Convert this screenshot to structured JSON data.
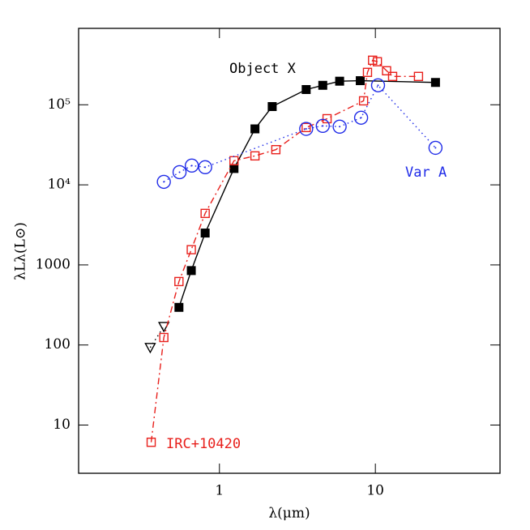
{
  "chart_data": {
    "type": "line",
    "xlog": true,
    "ylog": true,
    "xlabel": "λ(μm)",
    "ylabel": "λLλ(L⊙)",
    "xlim": [
      0.125,
      63
    ],
    "ylim": [
      2.5,
      900000
    ],
    "xticks": [
      1,
      10
    ],
    "yticks": [
      10,
      100,
      1000,
      {
        "value": 10000,
        "label": "10⁴"
      },
      {
        "value": 100000,
        "label": "10⁵"
      }
    ],
    "series": [
      {
        "name": "Object X",
        "color": "#000000",
        "marker": "filled-square",
        "linestyle": "solid",
        "x": [
          0.55,
          0.66,
          0.81,
          1.24,
          1.69,
          2.18,
          3.6,
          4.6,
          5.9,
          8.0,
          24.3
        ],
        "values": [
          295,
          850,
          2500,
          16000,
          50000,
          95000,
          155000,
          175000,
          197000,
          200000,
          190000
        ]
      },
      {
        "color": "#000000",
        "marker": "open-triangle-down",
        "linestyle": "dotted",
        "x": [
          0.36,
          0.44
        ],
        "values": [
          93,
          170
        ]
      },
      {
        "name": "IRC+10420",
        "color": "#e8201c",
        "marker": "open-square",
        "linestyle": "dashdot",
        "x": [
          0.365,
          0.44,
          0.55,
          0.66,
          0.81,
          1.24,
          1.69,
          2.3,
          3.6,
          4.9,
          8.4,
          8.9,
          9.6,
          10.3,
          11.8,
          12.9,
          18.9
        ],
        "values": [
          6.1,
          124,
          620,
          1550,
          4400,
          20000,
          23000,
          27500,
          52000,
          67000,
          112000,
          254000,
          360000,
          345000,
          266000,
          226000,
          226000
        ]
      },
      {
        "name": "Var A",
        "color": "#1f2be8",
        "marker": "open-circle",
        "linestyle": "dotted",
        "x": [
          0.44,
          0.555,
          0.665,
          0.81,
          3.6,
          4.6,
          5.9,
          8.1,
          10.4,
          24.3
        ],
        "values": [
          10900,
          14400,
          17400,
          16600,
          50000,
          54500,
          53300,
          68900,
          175000,
          29000
        ]
      }
    ]
  }
}
